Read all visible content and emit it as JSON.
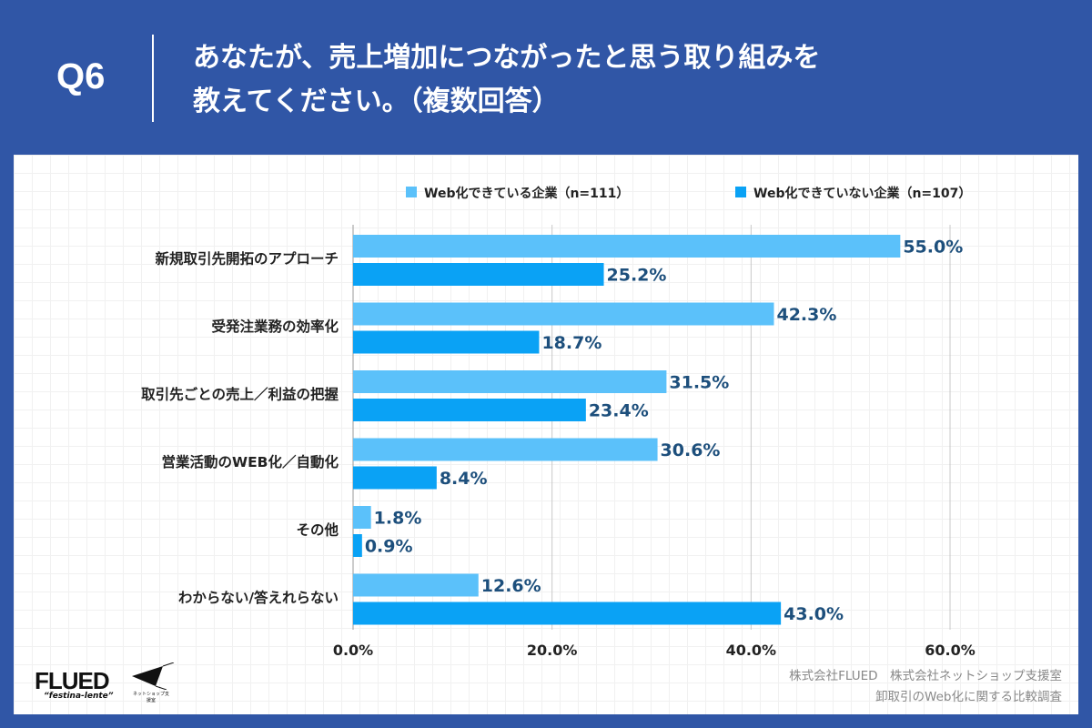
{
  "header": {
    "question": "Q6",
    "title_line1": "あなたが、売上増加につながったと思う取り組みを",
    "title_line2": "教えてください。（複数回答）"
  },
  "chart_data": {
    "type": "bar",
    "orientation": "horizontal",
    "categories": [
      "新規取引先開拓のアプローチ",
      "受発注業務の効率化",
      "取引先ごとの売上／利益の把握",
      "営業活動のWEB化／自動化",
      "その他",
      "わからない/答えれらない"
    ],
    "series": [
      {
        "name": "Web化できている企業（n=111）",
        "color": "#5bc1fa",
        "values": [
          55.0,
          42.3,
          31.5,
          30.6,
          1.8,
          12.6
        ]
      },
      {
        "name": "Web化できていない企業（n=107）",
        "color": "#0aa2f5",
        "values": [
          25.2,
          18.7,
          23.4,
          8.4,
          0.9,
          43.0
        ]
      }
    ],
    "xlim": [
      0,
      60
    ],
    "xticks": [
      "0.0%",
      "20.0%",
      "40.0%",
      "60.0%"
    ],
    "tick_values": [
      0,
      20,
      40,
      60
    ],
    "legend": "top-right",
    "grid": true,
    "label_color": "#1d4f7c"
  },
  "footer": {
    "logo1": "FLUED",
    "logo1_sub": "“festina-lente”",
    "logo2_sub": "ネットショップ支援室",
    "credit1": "株式会社FLUED　株式会社ネットショップ支援室",
    "credit2": "卸取引のWeb化に関する比較調査"
  }
}
